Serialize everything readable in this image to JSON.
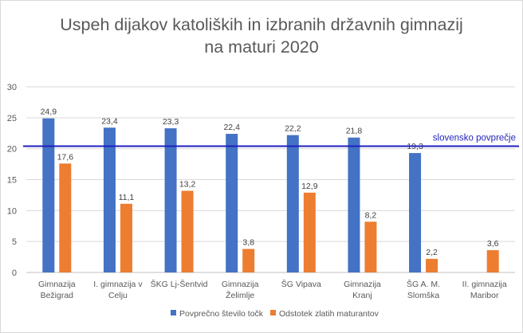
{
  "chart_data": {
    "type": "bar",
    "title_lines": [
      "Uspeh dijakov katoliških in izbranih državnih gimnazij",
      "na maturi 2020"
    ],
    "categories": [
      [
        "Gimnazija",
        "Bežigrad"
      ],
      [
        "I. gimnazija v",
        "Celju"
      ],
      [
        "ŠKG Lj-Šentvid"
      ],
      [
        "Gimnazija",
        "Želimlje"
      ],
      [
        "ŠG Vipava"
      ],
      [
        "Gimnazija",
        "Kranj"
      ],
      [
        "ŠG A. M.",
        "Slomška"
      ],
      [
        "II. gimnazija",
        "Maribor"
      ]
    ],
    "series": [
      {
        "name": "Povprečno število točk",
        "color": "#4472c4",
        "values": [
          24.9,
          23.4,
          23.3,
          22.4,
          22.2,
          21.8,
          19.3,
          null
        ],
        "labels": [
          "24,9",
          "23,4",
          "23,3",
          "22,4",
          "22,2",
          "21,8",
          "19,3",
          ""
        ]
      },
      {
        "name": "Odstotek zlatih maturantov",
        "color": "#ed7d31",
        "values": [
          17.6,
          11.1,
          13.2,
          3.8,
          12.9,
          8.2,
          2.2,
          3.6
        ],
        "labels": [
          "17,6",
          "11,1",
          "13,2",
          "3,8",
          "12,9",
          "8,2",
          "2,2",
          "3,6"
        ]
      }
    ],
    "reference_line": {
      "value": 20.4,
      "label": "slovensko povprečje",
      "color": "#1f1fbf"
    },
    "ylim": [
      0,
      30
    ],
    "yticks": [
      0,
      5,
      10,
      15,
      20,
      25,
      30
    ],
    "grid": true,
    "legend_position": "bottom",
    "xlabel": "",
    "ylabel": ""
  }
}
